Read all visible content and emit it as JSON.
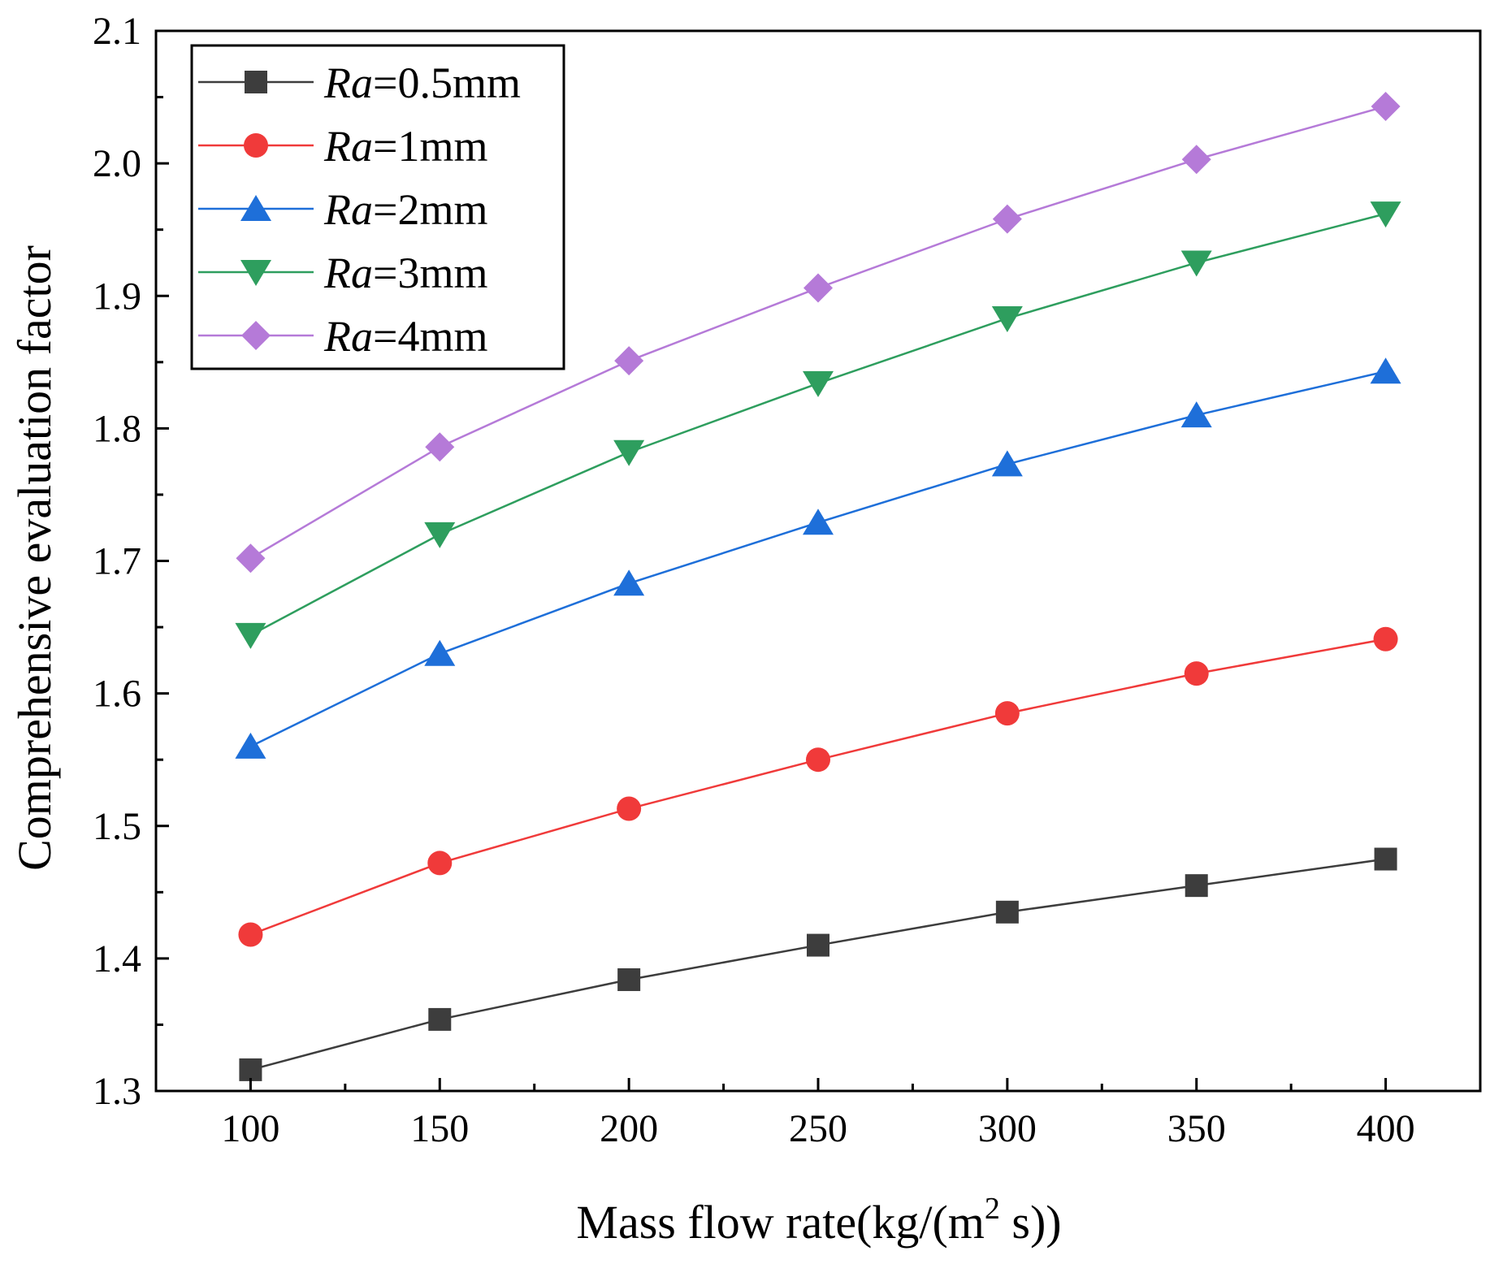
{
  "chart_data": {
    "type": "line",
    "title": "",
    "xlabel": "Mass flow rate(kg/(m",
    "xlabel_sup": "2",
    "xlabel_tail": " s))",
    "ylabel": "Comprehensive evaluation factor",
    "xlim": [
      75,
      425
    ],
    "ylim": [
      1.3,
      2.1
    ],
    "x": [
      100,
      150,
      200,
      250,
      300,
      350,
      400
    ],
    "xticks": [
      "100",
      "150",
      "200",
      "250",
      "300",
      "350",
      "400"
    ],
    "yticks": [
      "1.3",
      "1.4",
      "1.5",
      "1.6",
      "1.7",
      "1.8",
      "1.9",
      "2.0",
      "2.1"
    ],
    "legend_position": "top-left",
    "grid": false,
    "series": [
      {
        "name": "Ra=0.5mm",
        "label_italic": "Ra",
        "label_rest": "=0.5mm",
        "color": "#3d3d3d",
        "marker": "square",
        "values": [
          1.316,
          1.354,
          1.384,
          1.41,
          1.435,
          1.455,
          1.475
        ]
      },
      {
        "name": "Ra=1mm",
        "label_italic": "Ra",
        "label_rest": "=1mm",
        "color": "#f03a3a",
        "marker": "circle",
        "values": [
          1.418,
          1.472,
          1.513,
          1.55,
          1.585,
          1.615,
          1.641
        ]
      },
      {
        "name": "Ra=2mm",
        "label_italic": "Ra",
        "label_rest": "=2mm",
        "color": "#1e6fd9",
        "marker": "triangle-up",
        "values": [
          1.56,
          1.63,
          1.683,
          1.729,
          1.773,
          1.81,
          1.843
        ]
      },
      {
        "name": "Ra=3mm",
        "label_italic": "Ra",
        "label_rest": "=3mm",
        "color": "#2e9e5e",
        "marker": "triangle-down",
        "values": [
          1.644,
          1.72,
          1.782,
          1.834,
          1.883,
          1.925,
          1.962
        ]
      },
      {
        "name": "Ra=4mm",
        "label_italic": "Ra",
        "label_rest": "=4mm",
        "color": "#b57ad8",
        "marker": "diamond",
        "values": [
          1.702,
          1.786,
          1.851,
          1.906,
          1.958,
          2.003,
          2.043
        ]
      }
    ]
  }
}
